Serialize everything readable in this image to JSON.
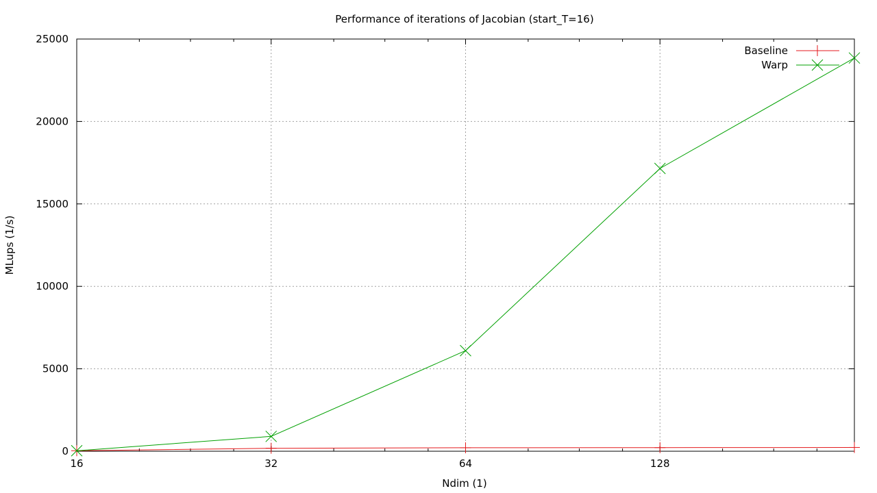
{
  "chart_data": {
    "type": "line",
    "title": "Performance of iterations of Jacobian (start_T=16)",
    "xlabel": "Ndim (1)",
    "ylabel": "MLups (1/s)",
    "x_scale": "log2",
    "xlim": [
      16,
      256
    ],
    "ylim": [
      0,
      25000
    ],
    "x_ticks": [
      16,
      32,
      64,
      128
    ],
    "y_ticks": [
      0,
      5000,
      10000,
      15000,
      20000,
      25000
    ],
    "grid": true,
    "legend_position": "top-right",
    "series": [
      {
        "name": "Baseline",
        "color": "#e41a1c",
        "marker": "plus",
        "x": [
          16,
          32,
          64,
          128,
          256
        ],
        "y": [
          30,
          180,
          210,
          220,
          230
        ]
      },
      {
        "name": "Warp",
        "color": "#00a000",
        "marker": "cross",
        "x": [
          16,
          32,
          64,
          128,
          256
        ],
        "y": [
          30,
          900,
          6100,
          17150,
          23850
        ]
      }
    ]
  }
}
